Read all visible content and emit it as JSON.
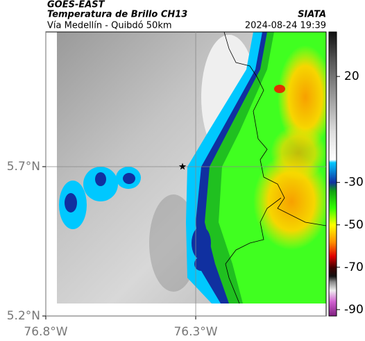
{
  "header": {
    "satellite": "GOES-EAST",
    "product": "Temperatura de Brillo CH13",
    "source": "SIATA",
    "route": "Vía Medellín - Quibdó 50km",
    "timestamp": "2024-08-24 19:39"
  },
  "map": {
    "xlim": [
      -76.8,
      -75.865
    ],
    "ylim": [
      5.2,
      6.151
    ],
    "xticks": [
      {
        "value": -76.8,
        "label": "76.8°W"
      },
      {
        "value": -76.3,
        "label": "76.3°W"
      }
    ],
    "yticks": [
      {
        "value": 5.7,
        "label": "5.7°N"
      },
      {
        "value": 5.2,
        "label": "5.2°N"
      }
    ],
    "grid": true,
    "marker": {
      "lon": -76.344,
      "lat": 5.7
    }
  },
  "colorbar": {
    "lim": [
      -93,
      41
    ],
    "ticks": [
      20,
      -30,
      -50,
      -70,
      -90
    ]
  }
}
